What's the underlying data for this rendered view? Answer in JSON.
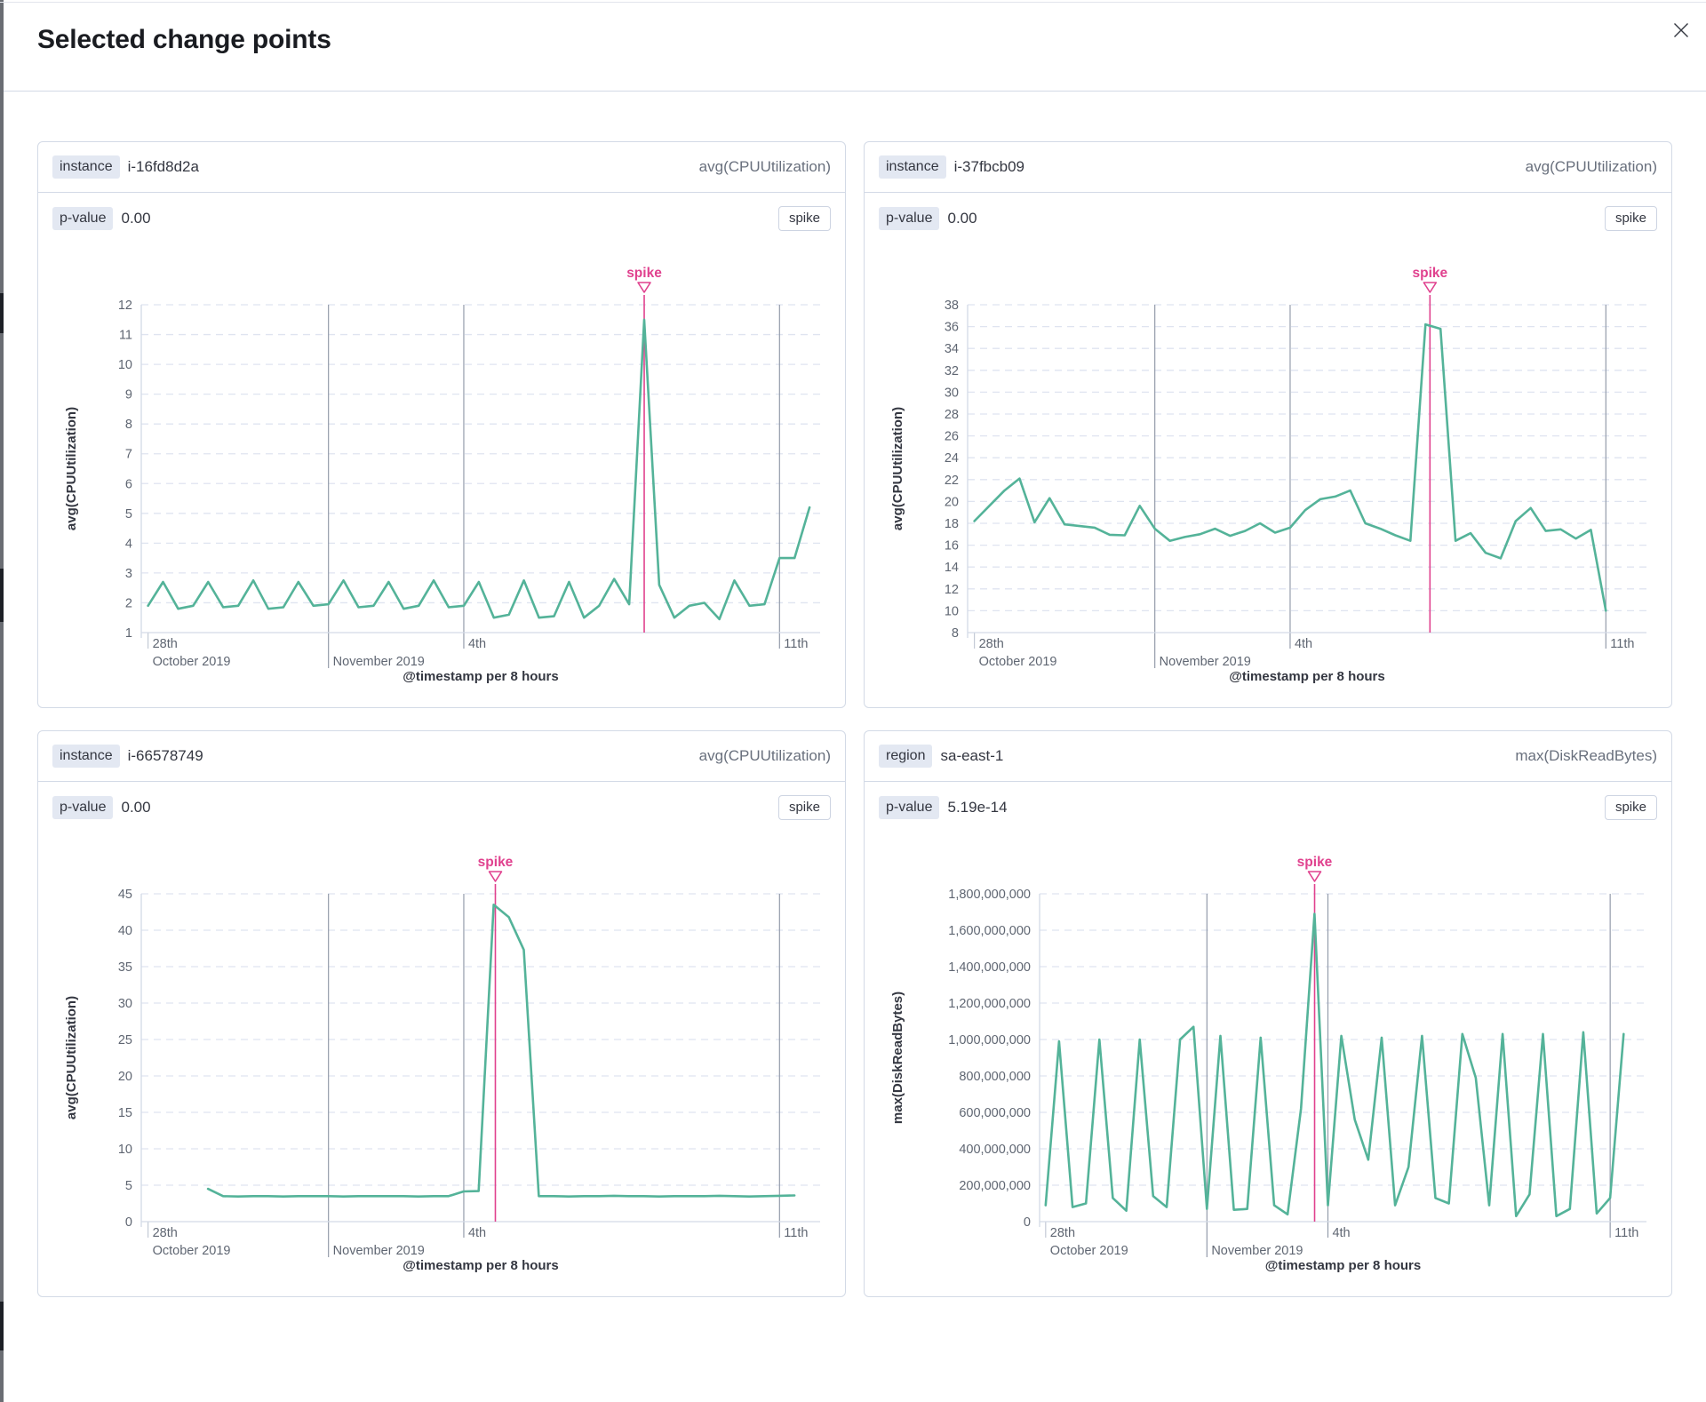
{
  "modal": {
    "title": "Selected change points",
    "close_icon": "close-icon"
  },
  "shared": {
    "x_axis_title": "@timestamp per 8 hours",
    "x_domain": [
      -0.15,
      14.9
    ],
    "x_ticks": [
      {
        "day": 0,
        "top": "28th",
        "bottom": "October 2019",
        "line": false
      },
      {
        "day": 4,
        "top": "",
        "bottom": "November 2019",
        "line": true
      },
      {
        "day": 7,
        "top": "4th",
        "bottom": "",
        "line": true
      },
      {
        "day": 14,
        "top": "11th",
        "bottom": "",
        "line": true
      }
    ],
    "colors": {
      "series": "#54b399",
      "annotation": "#e0418e",
      "grid_h": "#dfe4f0",
      "grid_v": "#949cab",
      "axis": "#d3dae6",
      "tick_mark": "#c3c9d5",
      "tick_text": "#5f6672",
      "title_text": "#343741"
    }
  },
  "panels": [
    {
      "key_label": "instance",
      "key_value": "i-16fd8d2a",
      "metric": "avg(CPUUtilization)",
      "p_value_label": "p-value",
      "p_value": "0.00",
      "type_badge": "spike",
      "annotation": {
        "label": "spike",
        "day": 11.0
      },
      "chart": {
        "type": "line",
        "y_axis_title": "avg(CPUUtilization)",
        "y_min": 1,
        "y_max": 12,
        "y_ticks": [
          {
            "v": 12,
            "label": "12"
          },
          {
            "v": 11,
            "label": "11"
          },
          {
            "v": 10,
            "label": "10"
          },
          {
            "v": 9,
            "label": "9"
          },
          {
            "v": 8,
            "label": "8"
          },
          {
            "v": 7,
            "label": "7"
          },
          {
            "v": 6,
            "label": "6"
          },
          {
            "v": 5,
            "label": "5"
          },
          {
            "v": 4,
            "label": "4"
          },
          {
            "v": 3,
            "label": "3"
          },
          {
            "v": 2,
            "label": "2"
          },
          {
            "v": 1,
            "label": "1"
          }
        ],
        "series_start_day": 0,
        "step_days": 0.33333,
        "values": [
          1.9,
          2.7,
          1.8,
          1.9,
          2.7,
          1.85,
          1.9,
          2.75,
          1.8,
          1.85,
          2.7,
          1.9,
          1.95,
          2.75,
          1.85,
          1.9,
          2.7,
          1.8,
          1.9,
          2.75,
          1.85,
          1.9,
          2.7,
          1.5,
          1.6,
          2.75,
          1.5,
          1.55,
          2.7,
          1.5,
          1.9,
          2.8,
          1.95,
          11.5,
          2.6,
          1.5,
          1.9,
          2.0,
          1.45,
          2.75,
          1.9,
          1.95,
          3.5,
          3.5,
          5.2
        ]
      }
    },
    {
      "key_label": "instance",
      "key_value": "i-37fbcb09",
      "metric": "avg(CPUUtilization)",
      "p_value_label": "p-value",
      "p_value": "0.00",
      "type_badge": "spike",
      "annotation": {
        "label": "spike",
        "day": 10.1
      },
      "chart": {
        "type": "line",
        "y_axis_title": "avg(CPUUtilization)",
        "y_min": 8,
        "y_max": 38,
        "y_ticks": [
          {
            "v": 38,
            "label": "38"
          },
          {
            "v": 36,
            "label": "36"
          },
          {
            "v": 34,
            "label": "34"
          },
          {
            "v": 32,
            "label": "32"
          },
          {
            "v": 30,
            "label": "30"
          },
          {
            "v": 28,
            "label": "28"
          },
          {
            "v": 26,
            "label": "26"
          },
          {
            "v": 24,
            "label": "24"
          },
          {
            "v": 22,
            "label": "22"
          },
          {
            "v": 20,
            "label": "20"
          },
          {
            "v": 18,
            "label": "18"
          },
          {
            "v": 16,
            "label": "16"
          },
          {
            "v": 14,
            "label": "14"
          },
          {
            "v": 12,
            "label": "12"
          },
          {
            "v": 10,
            "label": "10"
          },
          {
            "v": 8,
            "label": "8"
          }
        ],
        "series_start_day": 0,
        "step_days": 0.33333,
        "values": [
          18.2,
          19.6,
          21.0,
          22.1,
          18.1,
          20.3,
          17.9,
          17.75,
          17.6,
          16.95,
          16.9,
          19.6,
          17.5,
          16.4,
          16.75,
          17.0,
          17.5,
          16.85,
          17.3,
          18.0,
          17.15,
          17.6,
          19.2,
          20.2,
          20.45,
          21.0,
          18.0,
          17.5,
          16.9,
          16.4,
          36.2,
          35.8,
          16.4,
          17.1,
          15.3,
          14.8,
          18.2,
          19.4,
          17.3,
          17.45,
          16.6,
          17.4,
          10.0
        ]
      }
    },
    {
      "key_label": "instance",
      "key_value": "i-66578749",
      "metric": "avg(CPUUtilization)",
      "p_value_label": "p-value",
      "p_value": "0.00",
      "type_badge": "spike",
      "annotation": {
        "label": "spike",
        "day": 7.7
      },
      "chart": {
        "type": "line",
        "y_axis_title": "avg(CPUUtilization)",
        "y_min": 0,
        "y_max": 45,
        "y_ticks": [
          {
            "v": 45,
            "label": "45"
          },
          {
            "v": 40,
            "label": "40"
          },
          {
            "v": 35,
            "label": "35"
          },
          {
            "v": 30,
            "label": "30"
          },
          {
            "v": 25,
            "label": "25"
          },
          {
            "v": 20,
            "label": "20"
          },
          {
            "v": 15,
            "label": "15"
          },
          {
            "v": 10,
            "label": "10"
          },
          {
            "v": 5,
            "label": "5"
          },
          {
            "v": 0,
            "label": "0"
          }
        ],
        "series_start_day": 1.33,
        "step_days": 0.33333,
        "values": [
          4.5,
          3.5,
          3.45,
          3.5,
          3.5,
          3.45,
          3.5,
          3.5,
          3.5,
          3.45,
          3.5,
          3.5,
          3.5,
          3.5,
          3.45,
          3.5,
          3.5,
          4.15,
          4.2,
          43.5,
          41.8,
          37.3,
          3.5,
          3.5,
          3.45,
          3.5,
          3.5,
          3.55,
          3.5,
          3.5,
          3.45,
          3.5,
          3.5,
          3.5,
          3.55,
          3.5,
          3.45,
          3.5,
          3.55,
          3.6
        ]
      }
    },
    {
      "key_label": "region",
      "key_value": "sa-east-1",
      "metric": "max(DiskReadBytes)",
      "p_value_label": "p-value",
      "p_value": "5.19e-14",
      "type_badge": "spike",
      "annotation": {
        "label": "spike",
        "day": 6.67
      },
      "chart": {
        "type": "line",
        "y_axis_title": "max(DiskReadBytes)",
        "y_min": 0,
        "y_max": 1800000000,
        "y_ticks": [
          {
            "v": 1800000000,
            "label": "1,800,000,000"
          },
          {
            "v": 1600000000,
            "label": "1,600,000,000"
          },
          {
            "v": 1400000000,
            "label": "1,400,000,000"
          },
          {
            "v": 1200000000,
            "label": "1,200,000,000"
          },
          {
            "v": 1000000000,
            "label": "1,000,000,000"
          },
          {
            "v": 800000000,
            "label": "800,000,000"
          },
          {
            "v": 600000000,
            "label": "600,000,000"
          },
          {
            "v": 400000000,
            "label": "400,000,000"
          },
          {
            "v": 200000000,
            "label": "200,000,000"
          },
          {
            "v": 0,
            "label": "0"
          }
        ],
        "series_start_day": 0,
        "step_days": 0.33333,
        "values": [
          90000000,
          990000000,
          80000000,
          100000000,
          1000000000,
          130000000,
          60000000,
          1000000000,
          140000000,
          80000000,
          1000000000,
          1070000000,
          70000000,
          1020000000,
          65000000,
          70000000,
          1010000000,
          90000000,
          40000000,
          620000000,
          1690000000,
          90000000,
          1020000000,
          560000000,
          340000000,
          1010000000,
          90000000,
          300000000,
          1020000000,
          130000000,
          100000000,
          1030000000,
          790000000,
          90000000,
          1030000000,
          30000000,
          150000000,
          1030000000,
          30000000,
          70000000,
          1040000000,
          45000000,
          130000000,
          1030000000
        ]
      }
    }
  ]
}
